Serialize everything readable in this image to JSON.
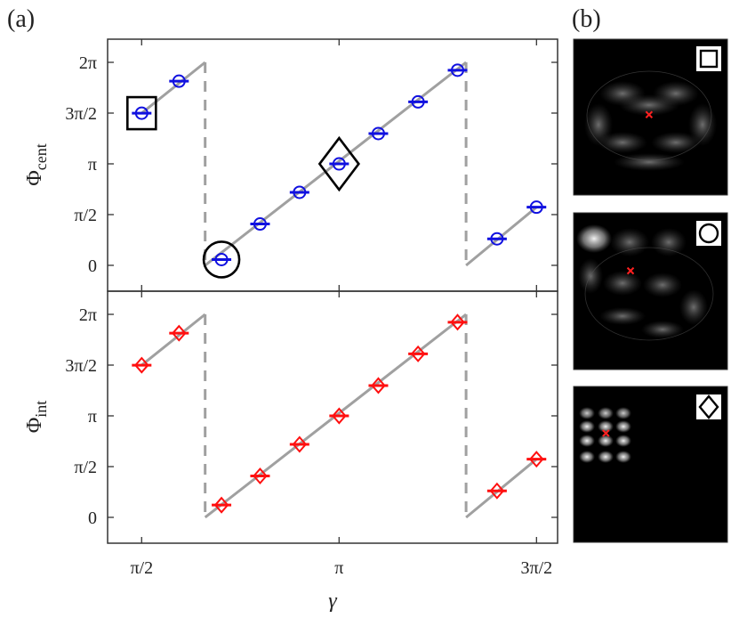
{
  "colors": {
    "fit_line": "#a0a0a0",
    "central_series": "#1010e0",
    "integrated_series": "#ff1010",
    "centroid_cross": "#ff2020",
    "image_background": "#000000",
    "frame": "#333333"
  },
  "panel_labels": {
    "a": "(a)",
    "b": "(b)"
  },
  "chart_data": [
    {
      "type": "scatter",
      "panel": "top",
      "ylabel": "Φ",
      "ylabel_subscript": "cent",
      "xlim": [
        1.3,
        4.88
      ],
      "ylim": [
        -0.8,
        7.0
      ],
      "x_ticks": [
        {
          "value": 1.5708,
          "label": "π/2"
        },
        {
          "value": 3.1416,
          "label": "π"
        },
        {
          "value": 4.7124,
          "label": "3π/2"
        }
      ],
      "y_ticks": [
        {
          "value": 0,
          "label": "0"
        },
        {
          "value": 1.5708,
          "label": "π/2"
        },
        {
          "value": 3.1416,
          "label": "π"
        },
        {
          "value": 4.7124,
          "label": "3π/2"
        },
        {
          "value": 6.2832,
          "label": "2π"
        }
      ],
      "marker": "circle",
      "series": [
        {
          "x": [
            1.571,
            1.868,
            2.206,
            2.513,
            2.827,
            3.142,
            3.454,
            3.77,
            4.084,
            4.398,
            4.712
          ],
          "y": [
            4.71,
            5.7,
            0.18,
            1.28,
            2.26,
            3.14,
            4.08,
            5.06,
            6.04,
            0.82,
            1.8
          ]
        }
      ],
      "fit_segments": [
        {
          "x": [
            1.571,
            2.076
          ],
          "y": [
            4.71,
            6.283
          ]
        },
        {
          "x": [
            2.076,
            4.152
          ],
          "y": [
            0.0,
            6.283
          ]
        },
        {
          "x": [
            4.152,
            4.712
          ],
          "y": [
            0.0,
            1.8
          ]
        }
      ],
      "dashed_lines": [
        {
          "x": 2.076,
          "y": [
            6.283,
            0.0
          ]
        },
        {
          "x": 4.152,
          "y": [
            6.283,
            0.0
          ]
        }
      ],
      "highlights": [
        {
          "shape": "square",
          "x": 1.571,
          "y": 4.71
        },
        {
          "shape": "circle",
          "x": 2.206,
          "y": 0.18
        },
        {
          "shape": "diamond",
          "x": 3.142,
          "y": 3.14
        }
      ]
    },
    {
      "type": "scatter",
      "panel": "bottom",
      "xlabel": "γ",
      "ylabel": "Φ",
      "ylabel_subscript": "int",
      "xlim": [
        1.3,
        4.88
      ],
      "ylim": [
        -0.8,
        7.0
      ],
      "x_ticks": [
        {
          "value": 1.5708,
          "label": "π/2"
        },
        {
          "value": 3.1416,
          "label": "π"
        },
        {
          "value": 4.7124,
          "label": "3π/2"
        }
      ],
      "y_ticks": [
        {
          "value": 0,
          "label": "0"
        },
        {
          "value": 1.5708,
          "label": "π/2"
        },
        {
          "value": 3.1416,
          "label": "π"
        },
        {
          "value": 4.7124,
          "label": "3π/2"
        },
        {
          "value": 6.2832,
          "label": "2π"
        }
      ],
      "marker": "diamond",
      "series": [
        {
          "x": [
            1.571,
            1.868,
            2.206,
            2.513,
            2.827,
            3.142,
            3.454,
            3.77,
            4.084,
            4.398,
            4.712
          ],
          "y": [
            4.71,
            5.7,
            0.38,
            1.28,
            2.26,
            3.14,
            4.08,
            5.06,
            6.04,
            0.82,
            1.8
          ]
        }
      ],
      "fit_segments": [
        {
          "x": [
            1.571,
            2.076
          ],
          "y": [
            4.71,
            6.283
          ]
        },
        {
          "x": [
            2.076,
            4.152
          ],
          "y": [
            0.0,
            6.283
          ]
        },
        {
          "x": [
            4.152,
            4.712
          ],
          "y": [
            0.0,
            1.8
          ]
        }
      ],
      "dashed_lines": [
        {
          "x": 2.076,
          "y": [
            6.283,
            0.0
          ]
        },
        {
          "x": 4.152,
          "y": [
            6.283,
            0.0
          ]
        }
      ]
    }
  ],
  "images": [
    {
      "symbol": "square",
      "symbol_icon": "square-icon",
      "centroid": [
        0.45,
        0.45
      ]
    },
    {
      "symbol": "circle",
      "symbol_icon": "circle-icon",
      "centroid": [
        0.37,
        0.37
      ]
    },
    {
      "symbol": "diamond",
      "symbol_icon": "diamond-icon",
      "centroid": [
        0.21,
        0.3
      ]
    }
  ]
}
